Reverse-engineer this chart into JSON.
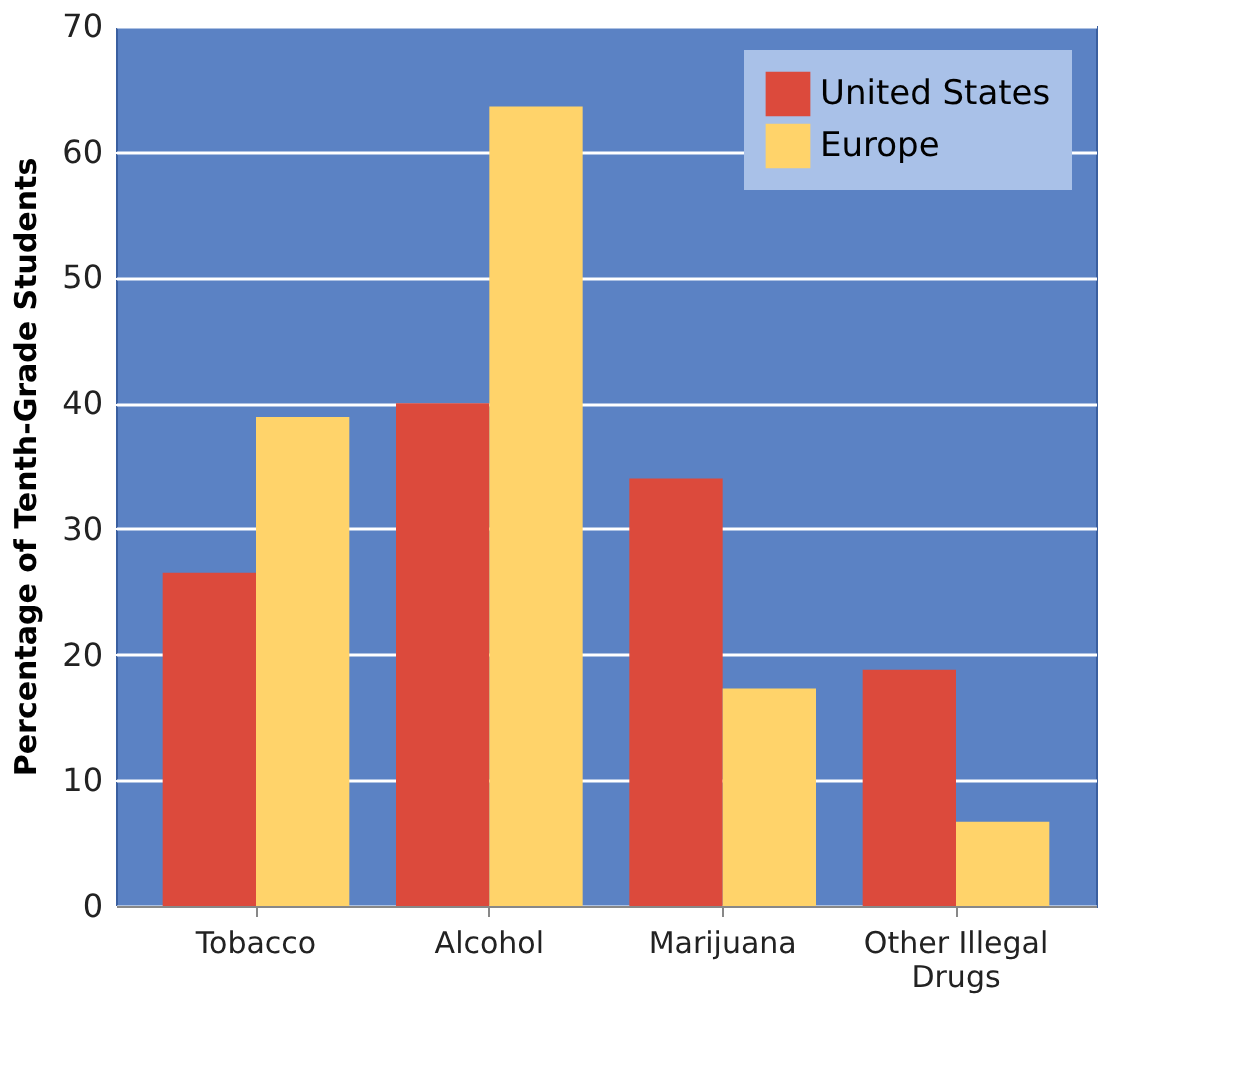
{
  "chart_data": {
    "type": "bar",
    "ylabel": "Percentage of Tenth-Grade Students",
    "categories": [
      "Tobacco",
      "Alcohol",
      "Marijuana",
      "Other Illegal Drugs"
    ],
    "series": [
      {
        "name": "United States",
        "color": "#dc4a3c",
        "values": [
          26.5,
          40,
          34,
          18.8
        ]
      },
      {
        "name": "Europe",
        "color": "#ffd36a",
        "values": [
          38.9,
          63.6,
          17.3,
          6.7
        ]
      }
    ],
    "ylim": [
      0,
      70
    ],
    "yticks": [
      0,
      10,
      20,
      30,
      40,
      50,
      60,
      70
    ],
    "grid": "y",
    "legend": "top right"
  }
}
